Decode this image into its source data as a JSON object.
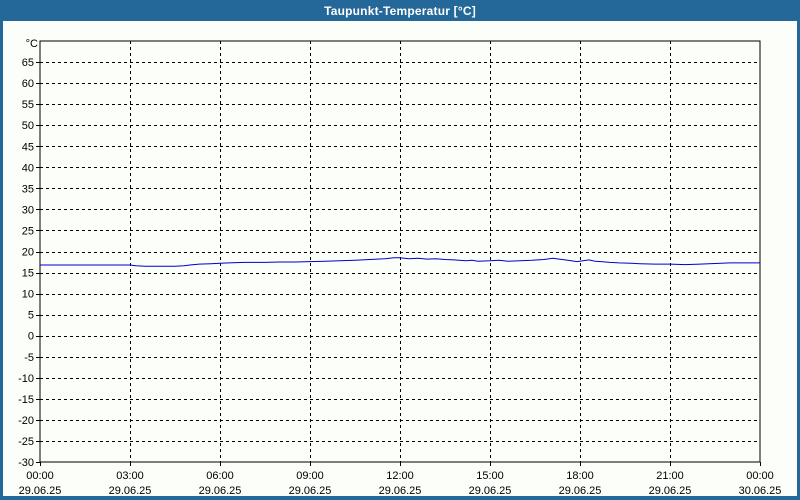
{
  "window": {
    "title": "Taupunkt-Temperatur [°C]"
  },
  "colors": {
    "frame_blue": "#246899",
    "title_text": "#ffffff",
    "background": "#fcfefa",
    "grid": "#000000",
    "axis_frame": "#000000",
    "label_text": "#000000",
    "series_line": "#0000cc"
  },
  "chart_data": {
    "type": "line",
    "title": "Taupunkt-Temperatur [°C]",
    "unit_label": "°C",
    "ylim": [
      -30,
      70
    ],
    "ytick_step": 5,
    "y_ticks": [
      65,
      60,
      55,
      50,
      45,
      40,
      35,
      30,
      25,
      20,
      15,
      10,
      5,
      0,
      -5,
      -10,
      -15,
      -20,
      -25,
      -30
    ],
    "x_ticks": [
      {
        "hour": 0,
        "time": "00:00",
        "date": "29.06.25"
      },
      {
        "hour": 3,
        "time": "03:00",
        "date": "29.06.25"
      },
      {
        "hour": 6,
        "time": "06:00",
        "date": "29.06.25"
      },
      {
        "hour": 9,
        "time": "09:00",
        "date": "29.06.25"
      },
      {
        "hour": 12,
        "time": "12:00",
        "date": "29.06.25"
      },
      {
        "hour": 15,
        "time": "15:00",
        "date": "29.06.25"
      },
      {
        "hour": 18,
        "time": "18:00",
        "date": "29.06.25"
      },
      {
        "hour": 21,
        "time": "21:00",
        "date": "29.06.25"
      },
      {
        "hour": 24,
        "time": "00:00",
        "date": "30.06.25"
      }
    ],
    "grid": "dashed",
    "legend": "none",
    "series": [
      {
        "name": "Taupunkt-Temperatur",
        "color": "#0000cc",
        "points": [
          [
            0.0,
            16.8
          ],
          [
            0.5,
            16.8
          ],
          [
            1.0,
            16.8
          ],
          [
            1.5,
            16.8
          ],
          [
            2.0,
            16.8
          ],
          [
            2.5,
            16.8
          ],
          [
            3.0,
            16.8
          ],
          [
            3.2,
            16.6
          ],
          [
            3.5,
            16.5
          ],
          [
            4.0,
            16.5
          ],
          [
            4.5,
            16.5
          ],
          [
            4.8,
            16.6
          ],
          [
            5.0,
            16.8
          ],
          [
            5.3,
            17.0
          ],
          [
            5.7,
            17.1
          ],
          [
            6.0,
            17.2
          ],
          [
            6.3,
            17.3
          ],
          [
            6.8,
            17.4
          ],
          [
            7.5,
            17.4
          ],
          [
            8.0,
            17.5
          ],
          [
            8.5,
            17.5
          ],
          [
            9.0,
            17.6
          ],
          [
            9.5,
            17.7
          ],
          [
            10.0,
            17.8
          ],
          [
            10.5,
            17.9
          ],
          [
            11.0,
            18.1
          ],
          [
            11.5,
            18.3
          ],
          [
            11.8,
            18.5
          ],
          [
            12.0,
            18.5
          ],
          [
            12.3,
            18.3
          ],
          [
            12.6,
            18.4
          ],
          [
            12.9,
            18.2
          ],
          [
            13.2,
            18.3
          ],
          [
            13.5,
            18.1
          ],
          [
            13.8,
            18.0
          ],
          [
            14.2,
            17.8
          ],
          [
            14.4,
            17.9
          ],
          [
            14.6,
            17.7
          ],
          [
            15.0,
            17.8
          ],
          [
            15.3,
            17.9
          ],
          [
            15.6,
            17.7
          ],
          [
            16.0,
            17.8
          ],
          [
            16.4,
            17.9
          ],
          [
            16.8,
            18.1
          ],
          [
            17.1,
            18.4
          ],
          [
            17.3,
            18.2
          ],
          [
            17.6,
            17.9
          ],
          [
            17.9,
            17.6
          ],
          [
            18.1,
            17.8
          ],
          [
            18.3,
            18.0
          ],
          [
            18.5,
            17.7
          ],
          [
            18.7,
            17.6
          ],
          [
            19.0,
            17.4
          ],
          [
            19.3,
            17.3
          ],
          [
            19.7,
            17.2
          ],
          [
            20.0,
            17.1
          ],
          [
            20.5,
            17.0
          ],
          [
            21.0,
            17.0
          ],
          [
            21.5,
            16.9
          ],
          [
            22.0,
            17.0
          ],
          [
            22.3,
            17.1
          ],
          [
            22.7,
            17.2
          ],
          [
            23.0,
            17.3
          ],
          [
            23.5,
            17.3
          ],
          [
            24.0,
            17.3
          ]
        ]
      }
    ]
  }
}
